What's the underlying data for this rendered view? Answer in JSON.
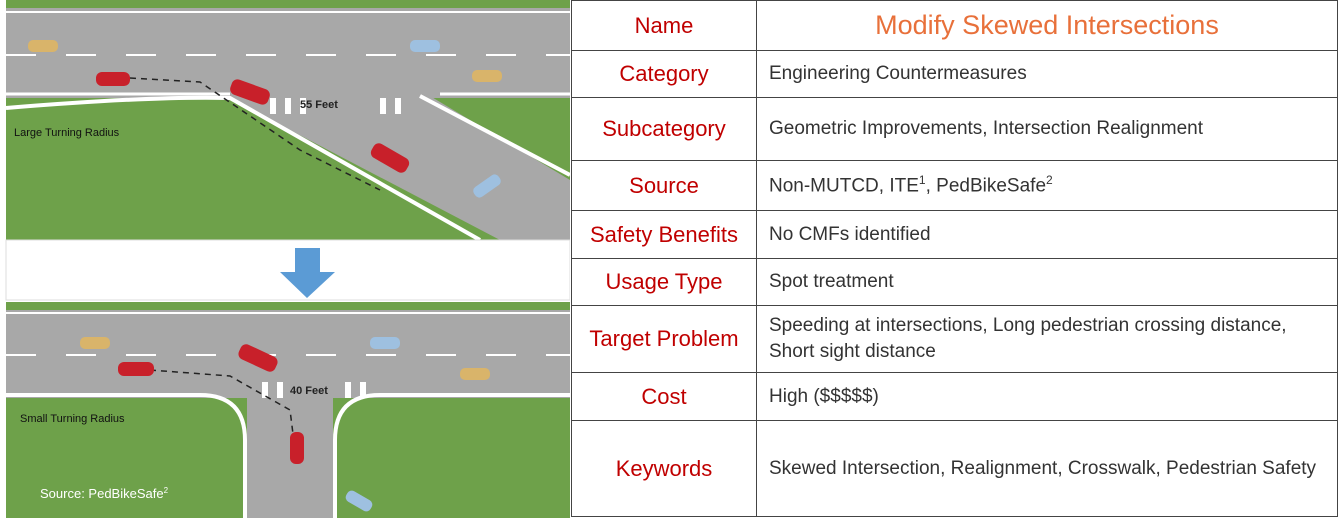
{
  "figure": {
    "top": {
      "distance": "55 Feet",
      "radius": "Large Turning Radius"
    },
    "bottom": {
      "distance": "40 Feet",
      "radius": "Small Turning Radius"
    },
    "source": "Source: PedBikeSafe",
    "source_note": "2"
  },
  "table": {
    "rows": [
      [
        "Name",
        "Modify Skewed Intersections"
      ],
      [
        "Category",
        "Engineering Countermeasures"
      ],
      [
        "Subcategory",
        "Geometric Improvements, Intersection Realignment"
      ],
      [
        "Source",
        [
          "Non-MUTCD, ITE",
          "1",
          ", PedBikeSafe",
          "2"
        ]
      ],
      [
        "Safety Benefits",
        "No CMFs identified"
      ],
      [
        "Usage Type",
        "Spot treatment"
      ],
      [
        "Target Problem",
        "Speeding at intersections, Long pedestrian crossing distance, Short sight distance"
      ],
      [
        "Cost",
        "High ($$$$$)"
      ],
      [
        "Keywords",
        "Skewed Intersection, Realignment, Crosswalk, Pedestrian Safety"
      ]
    ]
  }
}
